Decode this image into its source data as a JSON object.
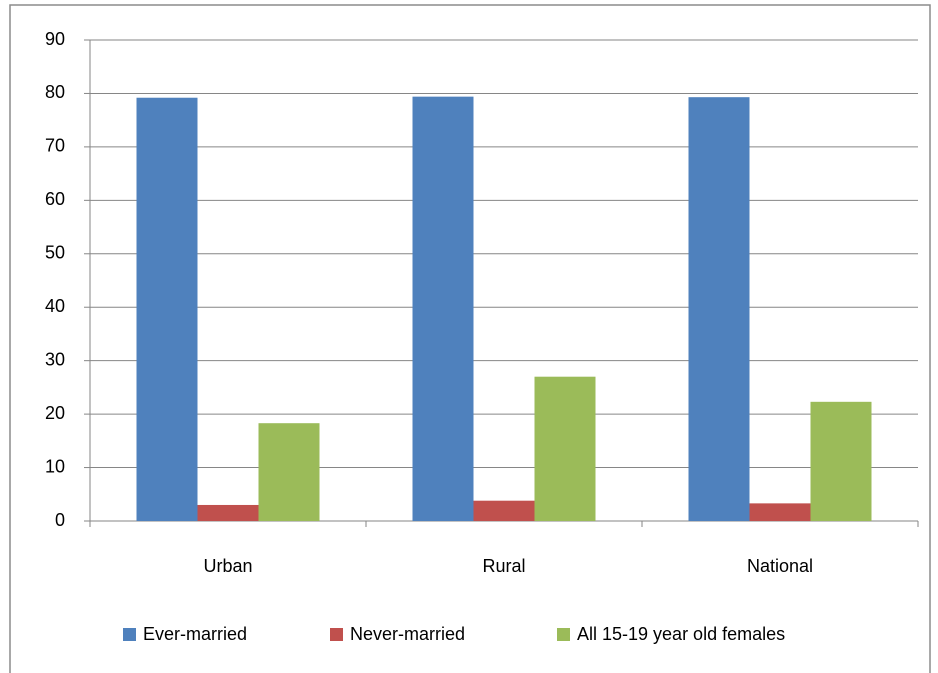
{
  "chart_data": {
    "type": "bar",
    "categories": [
      "Urban",
      "Rural",
      "National"
    ],
    "series": [
      {
        "name": "Ever-married",
        "color": "#4f81bd",
        "values": [
          79.2,
          79.4,
          79.3
        ]
      },
      {
        "name": "Never-married",
        "color": "#c0504d",
        "values": [
          3.0,
          3.8,
          3.3
        ]
      },
      {
        "name": "All 15-19 year old females",
        "color": "#9bbb59",
        "values": [
          18.3,
          27.0,
          22.3
        ]
      }
    ],
    "ylim": [
      0,
      90
    ],
    "yticks": [
      0,
      10,
      20,
      30,
      40,
      50,
      60,
      70,
      80,
      90
    ],
    "grid": true,
    "legend": "bottom"
  }
}
